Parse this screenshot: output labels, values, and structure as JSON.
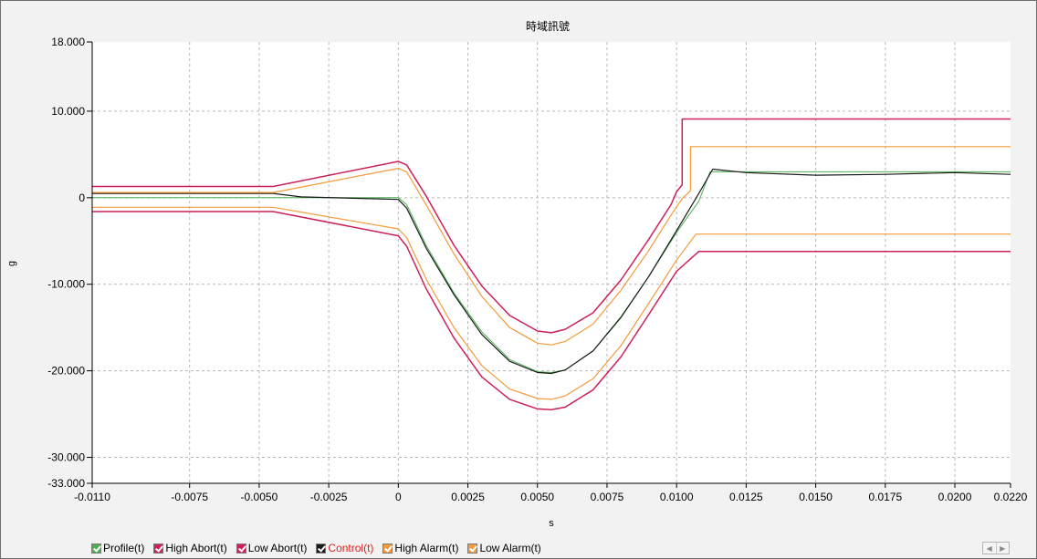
{
  "chart_data": {
    "type": "line",
    "title": "時域訊號",
    "xlabel": "s",
    "ylabel": "g",
    "xlim": [
      -0.011,
      0.022
    ],
    "ylim": [
      -33,
      18
    ],
    "x_ticks": [
      {
        "v": -0.011,
        "label": "-0.0110"
      },
      {
        "v": -0.0075,
        "label": "-0.0075"
      },
      {
        "v": -0.005,
        "label": "-0.0050"
      },
      {
        "v": -0.0025,
        "label": "-0.0025"
      },
      {
        "v": 0,
        "label": "0"
      },
      {
        "v": 0.0025,
        "label": "0.0025"
      },
      {
        "v": 0.005,
        "label": "0.0050"
      },
      {
        "v": 0.0075,
        "label": "0.0075"
      },
      {
        "v": 0.01,
        "label": "0.0100"
      },
      {
        "v": 0.0125,
        "label": "0.0125"
      },
      {
        "v": 0.015,
        "label": "0.0150"
      },
      {
        "v": 0.0175,
        "label": "0.0175"
      },
      {
        "v": 0.02,
        "label": "0.0200"
      },
      {
        "v": 0.022,
        "label": "0.0220"
      }
    ],
    "y_ticks": [
      {
        "v": 18,
        "label": "18.000"
      },
      {
        "v": 10,
        "label": "10.000"
      },
      {
        "v": 0,
        "label": "0"
      },
      {
        "v": -10,
        "label": "-10.000"
      },
      {
        "v": -20,
        "label": "-20.000"
      },
      {
        "v": -30,
        "label": "-30.000"
      },
      {
        "v": -33,
        "label": "-33.000"
      }
    ],
    "grid": true,
    "legend_position": "bottom",
    "series": [
      {
        "name": "Profile(t)",
        "color": "#4caf50",
        "width": 1,
        "x": [
          -0.011,
          0.0,
          0.0003,
          0.001,
          0.002,
          0.003,
          0.004,
          0.005,
          0.0055,
          0.006,
          0.007,
          0.008,
          0.009,
          0.01,
          0.0108,
          0.0112,
          0.022
        ],
        "y": [
          0,
          0,
          -0.8,
          -5.5,
          -11,
          -15.5,
          -18.7,
          -20.1,
          -20.2,
          -19.9,
          -17.7,
          -13.9,
          -9.1,
          -4,
          -0.4,
          3,
          3
        ]
      },
      {
        "name": "High Abort(t)",
        "color": "#cc1f5c",
        "width": 1.5,
        "x": [
          -0.011,
          -0.0045,
          0.0,
          0.0003,
          0.001,
          0.002,
          0.003,
          0.004,
          0.005,
          0.0055,
          0.006,
          0.007,
          0.008,
          0.009,
          0.0098,
          0.01,
          0.0102,
          0.0102,
          0.022
        ],
        "y": [
          1.3,
          1.3,
          4.2,
          3.8,
          0.2,
          -5.5,
          -10.2,
          -13.6,
          -15.4,
          -15.6,
          -15.2,
          -13.3,
          -9.5,
          -4.8,
          -0.8,
          0.7,
          1.5,
          9.1,
          9.1
        ]
      },
      {
        "name": "Low Abort(t)",
        "color": "#cc1f5c",
        "width": 1.5,
        "x": [
          -0.011,
          -0.0045,
          0.0,
          0.0003,
          0.001,
          0.002,
          0.003,
          0.004,
          0.005,
          0.0055,
          0.006,
          0.007,
          0.008,
          0.009,
          0.01,
          0.0108,
          0.0108,
          0.022
        ],
        "y": [
          -1.6,
          -1.6,
          -4.4,
          -5.6,
          -10.5,
          -16.2,
          -20.7,
          -23.3,
          -24.4,
          -24.5,
          -24.2,
          -22.2,
          -18.4,
          -13.5,
          -8.5,
          -6.2,
          -6.2,
          -6.2
        ]
      },
      {
        "name": "Control(t)",
        "color": "#1a1a1a",
        "width": 1.2,
        "x": [
          -0.011,
          -0.0045,
          -0.0035,
          0.0,
          0.0003,
          0.001,
          0.002,
          0.003,
          0.004,
          0.005,
          0.0055,
          0.006,
          0.007,
          0.008,
          0.009,
          0.01,
          0.0108,
          0.0113,
          0.0125,
          0.015,
          0.0175,
          0.02,
          0.022
        ],
        "y": [
          0.5,
          0.5,
          0.1,
          -0.2,
          -1.2,
          -5.8,
          -11.2,
          -15.8,
          -18.9,
          -20.2,
          -20.3,
          -19.9,
          -17.7,
          -13.8,
          -9.1,
          -3.8,
          0.5,
          3.3,
          2.9,
          2.6,
          2.7,
          2.9,
          2.7
        ]
      },
      {
        "name": "High Alarm(t)",
        "color": "#f39a3b",
        "width": 1.2,
        "x": [
          -0.011,
          -0.0045,
          0.0,
          0.0003,
          0.001,
          0.002,
          0.003,
          0.004,
          0.005,
          0.0055,
          0.006,
          0.007,
          0.008,
          0.009,
          0.0098,
          0.0102,
          0.0105,
          0.0105,
          0.022
        ],
        "y": [
          0.6,
          0.6,
          3.4,
          3,
          -0.8,
          -6.5,
          -11.4,
          -15,
          -16.8,
          -17.0,
          -16.6,
          -14.6,
          -10.7,
          -6.1,
          -2,
          -0.1,
          0.8,
          5.9,
          5.9
        ]
      },
      {
        "name": "Low Alarm(t)",
        "color": "#f39a3b",
        "width": 1.2,
        "x": [
          -0.011,
          -0.0045,
          0.0,
          0.0003,
          0.001,
          0.002,
          0.003,
          0.004,
          0.005,
          0.0055,
          0.006,
          0.007,
          0.008,
          0.009,
          0.01,
          0.0107,
          0.0107,
          0.022
        ],
        "y": [
          -1.1,
          -1.1,
          -3.6,
          -4.6,
          -9.4,
          -15,
          -19.4,
          -22.1,
          -23.2,
          -23.3,
          -22.9,
          -20.9,
          -17.1,
          -12.2,
          -7.2,
          -4.2,
          -4.2,
          -4.2
        ]
      }
    ]
  },
  "legend": [
    {
      "label": "Profile(t)",
      "color": "#4caf50",
      "checked": true
    },
    {
      "label": "High Abort(t)",
      "color": "#cc1f5c",
      "checked": true
    },
    {
      "label": "Low Abort(t)",
      "color": "#cc1f5c",
      "checked": true
    },
    {
      "label": "Control(t)",
      "color": "#1a1a1a",
      "checked": true,
      "label_color": "#e02020"
    },
    {
      "label": "High Alarm(t)",
      "color": "#f39a3b",
      "checked": true
    },
    {
      "label": "Low Alarm(t)",
      "color": "#f39a3b",
      "checked": true
    }
  ],
  "scroll_buttons": {
    "left": "◀",
    "right": "▶"
  }
}
